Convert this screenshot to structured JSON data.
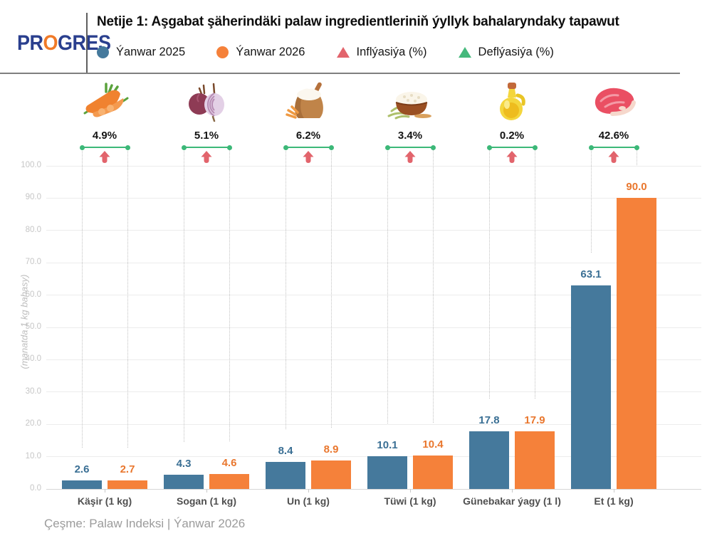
{
  "brand": {
    "part1": "PR",
    "part2": "O",
    "part3": "GRES"
  },
  "header": {
    "title": "Netije 1: Aşgabat şäherindäki palaw ingredientleriniň ýyllyk bahalaryndaky tapawut"
  },
  "legend": {
    "items": [
      {
        "label": "Ýanwar 2025",
        "marker": "circle",
        "color": "#45799c"
      },
      {
        "label": "Ýanwar 2026",
        "marker": "circle",
        "color": "#f5813a"
      },
      {
        "label": "Inflýasiýa (%)",
        "marker": "triangle",
        "color": "#e2646c"
      },
      {
        "label": "Deflýasiýa (%)",
        "marker": "triangle",
        "color": "#45b97c"
      }
    ]
  },
  "chart_data": {
    "type": "bar",
    "title": "Netije 1: Aşgabat şäherindäki palaw ingredientleriniň ýyllyk bahalaryndaky tapawut",
    "ylabel": "(manatda 1 kg bahasy)",
    "ylim": [
      0,
      100
    ],
    "ytick_step": 10,
    "grid": true,
    "legend_position": "top",
    "categories": [
      "Käşir (1 kg)",
      "Sogan (1 kg)",
      "Un (1 kg)",
      "Tüwi (1 kg)",
      "Günebakar ýagy (1 l)",
      "Et (1 kg)"
    ],
    "series": [
      {
        "name": "Ýanwar 2025",
        "color": "#45799c",
        "values": [
          2.6,
          4.3,
          8.4,
          10.1,
          17.8,
          63.1
        ]
      },
      {
        "name": "Ýanwar 2026",
        "color": "#f5813a",
        "values": [
          2.7,
          4.6,
          8.9,
          10.4,
          17.9,
          90.0
        ]
      }
    ],
    "annual_change_pct": [
      4.9,
      5.1,
      6.2,
      3.4,
      0.2,
      42.6
    ],
    "change_type": [
      "inflation",
      "inflation",
      "inflation",
      "inflation",
      "inflation",
      "inflation"
    ],
    "icons": [
      "carrot-icon",
      "onion-icon",
      "flour-sack-icon",
      "rice-bowl-icon",
      "oil-bottle-icon",
      "meat-icon"
    ]
  },
  "colors": {
    "inflation_red": "#e2646c",
    "deflation_green": "#45b97c",
    "bracket_green": "#3cb878",
    "value_label_2025": "#3a6f94",
    "value_label_2026": "#e9772e",
    "logo_navy": "#2a3f8e",
    "logo_orange": "#f07a28"
  },
  "footer": {
    "source": "Çeşme: Palaw Indeksi | Ýanwar 2026"
  }
}
